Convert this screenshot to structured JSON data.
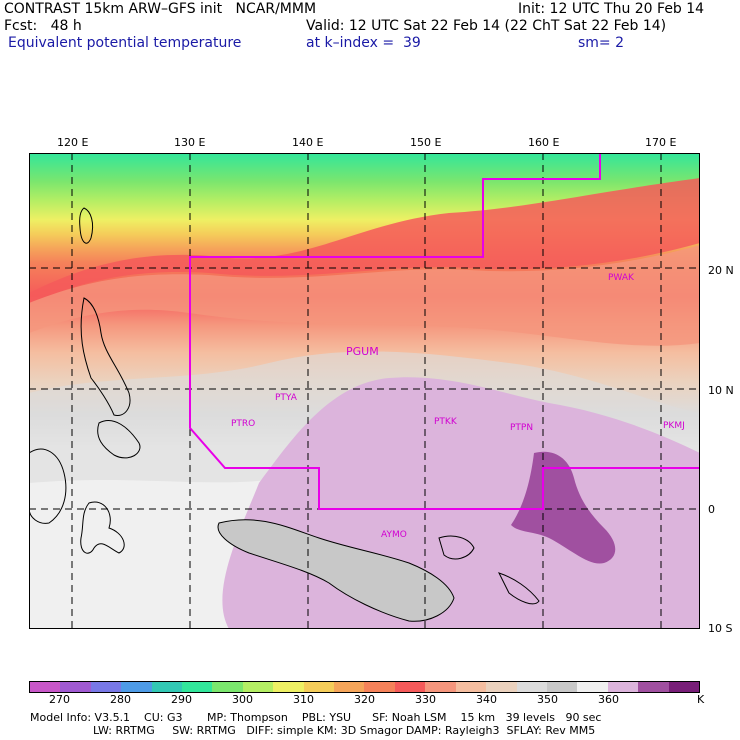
{
  "header": {
    "line1_left": "CONTRAST 15km ARW–GFS init   NCAR/MMM",
    "line1_right": "Init: 12 UTC Thu 20 Feb 14",
    "line2_left": "Fcst:   48 h",
    "line2_right": "Valid: 12 UTC Sat 22 Feb 14 (22 ChT Sat 22 Feb 14)",
    "line3_left": "Equivalent potential temperature",
    "line3_mid": "at k–index =  39",
    "line3_right": "sm= 2"
  },
  "lon_labels": [
    "120 E",
    "130 E",
    "140 E",
    "150 E",
    "160 E",
    "170 E"
  ],
  "lat_labels": [
    "20 N",
    "10 N",
    "0",
    "10 S"
  ],
  "stations": [
    "PWAK",
    "PGUM",
    "PTYA",
    "PTRO",
    "PTKK",
    "PTPN",
    "PKMJ",
    "AYMO"
  ],
  "colorbar": {
    "colors": [
      "#c857c8",
      "#a05ad2",
      "#7878e6",
      "#4e9be6",
      "#32c8b4",
      "#32e69b",
      "#7be66e",
      "#b4ee64",
      "#eef064",
      "#f5cd5a",
      "#f5a55a",
      "#f5825a",
      "#f55a5a",
      "#f5967d",
      "#f5bea0",
      "#ebd2be",
      "#dcdcdc",
      "#c8c8c8",
      "#f0f0f0",
      "#dcb4dc",
      "#a050a0",
      "#781e78"
    ],
    "ticks": [
      "270",
      "280",
      "290",
      "300",
      "310",
      "320",
      "330",
      "340",
      "350",
      "360"
    ],
    "unit": "K"
  },
  "model_info": {
    "line1": "Model Info: V3.5.1    CU: G3       MP: Thompson    PBL: YSU      SF: Noah LSM    15 km   39 levels   90 sec",
    "line2": "                  LW: RRTMG     SW: RRTMG   DIFF: simple KM: 3D Smagor DAMP: Rayleigh3  SFLAY: Rev MM5"
  }
}
